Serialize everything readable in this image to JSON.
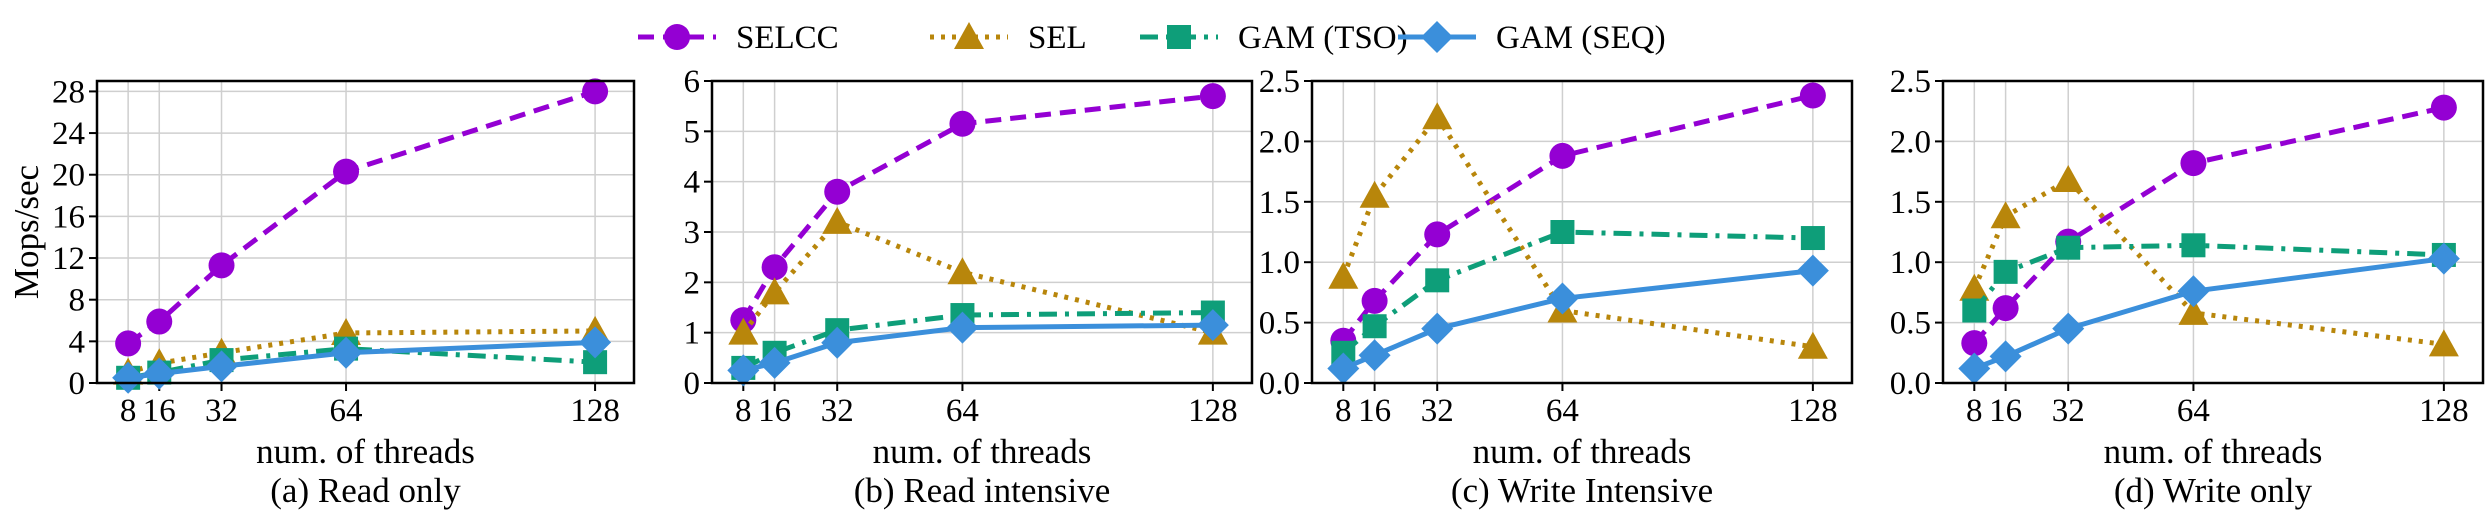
{
  "legend": [
    {
      "label": "SELCC"
    },
    {
      "label": "SEL"
    },
    {
      "label": "GAM (TSO)"
    },
    {
      "label": "GAM (SEQ)"
    }
  ],
  "series_styles": [
    {
      "color": "#9400D3",
      "dash": "dashed",
      "marker": "circle"
    },
    {
      "color": "#B8860B",
      "dash": "dotted",
      "marker": "triangle"
    },
    {
      "color": "#0E9E79",
      "dash": "dashdot",
      "marker": "square"
    },
    {
      "color": "#3B8FDB",
      "dash": "solid",
      "marker": "diamond"
    }
  ],
  "chart_data": [
    {
      "type": "line",
      "caption": "(a) Read only",
      "xlabel": "num. of threads",
      "ylabel": "Mops/sec",
      "x": [
        8,
        16,
        32,
        64,
        128
      ],
      "xticks": [
        8,
        16,
        32,
        64,
        128
      ],
      "ylim": [
        0,
        29
      ],
      "yticks": [
        0,
        4,
        8,
        12,
        16,
        20,
        24,
        28
      ],
      "ytick_labels": [
        "0",
        "4",
        "8",
        "12",
        "16",
        "20",
        "24",
        "28"
      ],
      "grid": true,
      "series": [
        {
          "name": "SELCC",
          "values": [
            3.8,
            5.9,
            11.3,
            20.3,
            28.0
          ]
        },
        {
          "name": "SEL",
          "values": [
            1.0,
            1.9,
            2.9,
            4.8,
            5.0
          ]
        },
        {
          "name": "GAM (TSO)",
          "values": [
            0.5,
            1.0,
            2.2,
            3.3,
            2.0
          ]
        },
        {
          "name": "GAM (SEQ)",
          "values": [
            0.5,
            0.9,
            1.6,
            2.9,
            3.9
          ]
        }
      ]
    },
    {
      "type": "line",
      "caption": "(b) Read intensive",
      "xlabel": "num. of threads",
      "ylabel": "",
      "x": [
        8,
        16,
        32,
        64,
        128
      ],
      "xticks": [
        8,
        16,
        32,
        64,
        128
      ],
      "ylim": [
        0,
        6
      ],
      "yticks": [
        0,
        1,
        2,
        3,
        4,
        5,
        6
      ],
      "ytick_labels": [
        "0",
        "1",
        "2",
        "3",
        "4",
        "5",
        "6"
      ],
      "grid": true,
      "series": [
        {
          "name": "SELCC",
          "values": [
            1.25,
            2.3,
            3.8,
            5.15,
            5.7
          ]
        },
        {
          "name": "SEL",
          "values": [
            1.0,
            1.8,
            3.2,
            2.2,
            1.0
          ]
        },
        {
          "name": "GAM (TSO)",
          "values": [
            0.3,
            0.6,
            1.05,
            1.35,
            1.4
          ]
        },
        {
          "name": "GAM (SEQ)",
          "values": [
            0.25,
            0.4,
            0.8,
            1.1,
            1.15
          ]
        }
      ]
    },
    {
      "type": "line",
      "caption": "(c) Write Intensive",
      "xlabel": "num. of threads",
      "ylabel": "",
      "x": [
        8,
        16,
        32,
        64,
        128
      ],
      "xticks": [
        8,
        16,
        32,
        64,
        128
      ],
      "ylim": [
        0,
        2.5
      ],
      "yticks": [
        0,
        0.5,
        1,
        1.5,
        2,
        2.5
      ],
      "ytick_labels": [
        "0.0",
        "0.5",
        "1.0",
        "1.5",
        "2.0",
        "2.5"
      ],
      "grid": true,
      "series": [
        {
          "name": "SELCC",
          "values": [
            0.35,
            0.68,
            1.23,
            1.88,
            2.38
          ]
        },
        {
          "name": "SEL",
          "values": [
            0.88,
            1.55,
            2.2,
            0.6,
            0.3
          ]
        },
        {
          "name": "GAM (TSO)",
          "values": [
            0.25,
            0.47,
            0.85,
            1.25,
            1.2
          ]
        },
        {
          "name": "GAM (SEQ)",
          "values": [
            0.12,
            0.23,
            0.45,
            0.7,
            0.93
          ]
        }
      ]
    },
    {
      "type": "line",
      "caption": "(d) Write only",
      "xlabel": "num. of threads",
      "ylabel": "",
      "x": [
        8,
        16,
        32,
        64,
        128
      ],
      "xticks": [
        8,
        16,
        32,
        64,
        128
      ],
      "ylim": [
        0,
        2.5
      ],
      "yticks": [
        0,
        0.5,
        1,
        1.5,
        2,
        2.5
      ],
      "ytick_labels": [
        "0.0",
        "0.5",
        "1.0",
        "1.5",
        "2.0",
        "2.5"
      ],
      "grid": true,
      "series": [
        {
          "name": "SELCC",
          "values": [
            0.33,
            0.62,
            1.17,
            1.82,
            2.28
          ]
        },
        {
          "name": "SEL",
          "values": [
            0.78,
            1.38,
            1.68,
            0.58,
            0.32
          ]
        },
        {
          "name": "GAM (TSO)",
          "values": [
            0.6,
            0.92,
            1.12,
            1.14,
            1.06
          ]
        },
        {
          "name": "GAM (SEQ)",
          "values": [
            0.12,
            0.22,
            0.45,
            0.76,
            1.03
          ]
        }
      ]
    }
  ]
}
